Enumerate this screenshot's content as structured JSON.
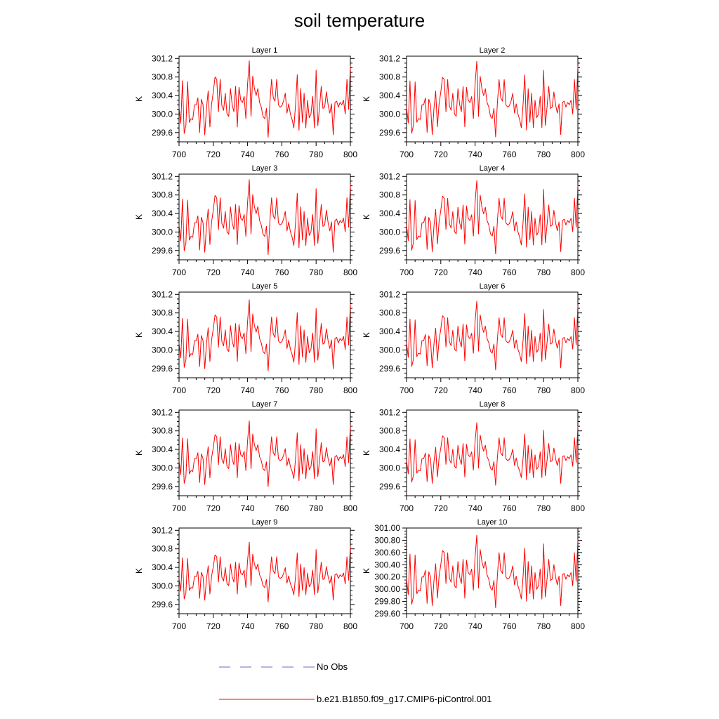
{
  "title": "soil temperature",
  "colors": {
    "series": "#ff0000",
    "obs": "#6a6ad0",
    "axis": "#000000"
  },
  "chart_data": {
    "type": "line",
    "x": [
      700,
      701,
      702,
      703,
      704,
      705,
      706,
      707,
      708,
      709,
      710,
      711,
      712,
      713,
      714,
      715,
      716,
      717,
      718,
      719,
      720,
      721,
      722,
      723,
      724,
      725,
      726,
      727,
      728,
      729,
      730,
      731,
      732,
      733,
      734,
      735,
      736,
      737,
      738,
      739,
      740,
      741,
      742,
      743,
      744,
      745,
      746,
      747,
      748,
      749,
      750,
      751,
      752,
      753,
      754,
      755,
      756,
      757,
      758,
      759,
      760,
      761,
      762,
      763,
      764,
      765,
      766,
      767,
      768,
      769,
      770,
      771,
      772,
      773,
      774,
      775,
      776,
      777,
      778,
      779,
      780,
      781,
      782,
      783,
      784,
      785,
      786,
      787,
      788,
      789,
      790,
      791,
      792,
      793,
      794,
      795,
      796,
      797,
      798,
      799,
      800
    ],
    "base": [
      300.15,
      299.8,
      300.72,
      299.58,
      299.75,
      300.7,
      299.82,
      299.9,
      299.88,
      300.2,
      300.2,
      300.35,
      299.6,
      300.32,
      300.2,
      299.55,
      300.12,
      300.5,
      299.72,
      300.22,
      300.48,
      300.8,
      300.75,
      300.05,
      300.75,
      300.18,
      300.08,
      300.45,
      300.0,
      299.95,
      300.55,
      300.2,
      300.05,
      300.6,
      299.72,
      300.58,
      300.3,
      300.25,
      300.38,
      299.9,
      300.65,
      301.15,
      299.95,
      300.82,
      300.55,
      300.4,
      300.55,
      300.25,
      300.15,
      299.95,
      299.9,
      300.12,
      299.5,
      300.22,
      300.75,
      300.35,
      300.28,
      300.75,
      300.2,
      300.15,
      300.18,
      300.28,
      300.45,
      300.02,
      300.22,
      300.0,
      299.88,
      299.7,
      300.2,
      300.85,
      299.65,
      300.55,
      299.82,
      300.45,
      299.7,
      300.3,
      299.92,
      300.0,
      300.38,
      299.7,
      300.95,
      299.75,
      300.15,
      300.6,
      300.12,
      300.15,
      300.48,
      300.2,
      300.02,
      300.22,
      299.55,
      300.25,
      300.28,
      300.15,
      300.25,
      300.2,
      300.3,
      300.0,
      300.75,
      300.1,
      301.05
    ],
    "xlim": [
      700,
      800
    ],
    "grid": false,
    "panels": [
      {
        "title": "Layer 1",
        "ylabel": "K",
        "ylim": [
          299.4,
          301.25
        ],
        "yticks": [
          299.6,
          300.0,
          300.4,
          300.8,
          301.2
        ],
        "yticklabels": [
          "299.6",
          "300.0",
          "300.4",
          "300.8",
          "301.2"
        ],
        "xticklabels": [
          "700",
          "720",
          "740",
          "760",
          "780",
          "800"
        ],
        "amp": 1.0
      },
      {
        "title": "Layer 2",
        "ylabel": "K",
        "ylim": [
          299.4,
          301.25
        ],
        "yticks": [
          299.6,
          300.0,
          300.4,
          300.8,
          301.2
        ],
        "yticklabels": [
          "299.6",
          "300.0",
          "300.4",
          "300.8",
          "301.2"
        ],
        "xticklabels": [
          "700",
          "720",
          "740",
          "760",
          "780",
          "800"
        ],
        "amp": 0.99
      },
      {
        "title": "Layer 3",
        "ylabel": "K",
        "ylim": [
          299.4,
          301.25
        ],
        "yticks": [
          299.6,
          300.0,
          300.4,
          300.8,
          301.2
        ],
        "yticklabels": [
          "299.6",
          "300.0",
          "300.4",
          "300.8",
          "301.2"
        ],
        "xticklabels": [
          "700",
          "720",
          "740",
          "760",
          "780",
          "800"
        ],
        "amp": 0.98
      },
      {
        "title": "Layer 4",
        "ylabel": "K",
        "ylim": [
          299.4,
          301.25
        ],
        "yticks": [
          299.6,
          300.0,
          300.4,
          300.8,
          301.2
        ],
        "yticklabels": [
          "299.6",
          "300.0",
          "300.4",
          "300.8",
          "301.2"
        ],
        "xticklabels": [
          "700",
          "720",
          "740",
          "760",
          "780",
          "800"
        ],
        "amp": 0.96
      },
      {
        "title": "Layer 5",
        "ylabel": "K",
        "ylim": [
          299.4,
          301.25
        ],
        "yticks": [
          299.6,
          300.0,
          300.4,
          300.8,
          301.2
        ],
        "yticklabels": [
          "299.6",
          "300.0",
          "300.4",
          "300.8",
          "301.2"
        ],
        "xticklabels": [
          "700",
          "720",
          "740",
          "760",
          "780",
          "800"
        ],
        "amp": 0.93
      },
      {
        "title": "Layer 6",
        "ylabel": "K",
        "ylim": [
          299.4,
          301.25
        ],
        "yticks": [
          299.6,
          300.0,
          300.4,
          300.8,
          301.2
        ],
        "yticklabels": [
          "299.6",
          "300.0",
          "300.4",
          "300.8",
          "301.2"
        ],
        "xticklabels": [
          "700",
          "720",
          "740",
          "760",
          "780",
          "800"
        ],
        "amp": 0.9
      },
      {
        "title": "Layer 7",
        "ylabel": "K",
        "ylim": [
          299.4,
          301.25
        ],
        "yticks": [
          299.6,
          300.0,
          300.4,
          300.8,
          301.2
        ],
        "yticklabels": [
          "299.6",
          "300.0",
          "300.4",
          "300.8",
          "301.2"
        ],
        "xticklabels": [
          "700",
          "720",
          "740",
          "760",
          "780",
          "800"
        ],
        "amp": 0.86
      },
      {
        "title": "Layer 8",
        "ylabel": "K",
        "ylim": [
          299.4,
          301.25
        ],
        "yticks": [
          299.6,
          300.0,
          300.4,
          300.8,
          301.2
        ],
        "yticklabels": [
          "299.6",
          "300.0",
          "300.4",
          "300.8",
          "301.2"
        ],
        "xticklabels": [
          "700",
          "720",
          "740",
          "760",
          "780",
          "800"
        ],
        "amp": 0.82
      },
      {
        "title": "Layer 9",
        "ylabel": "K",
        "ylim": [
          299.4,
          301.25
        ],
        "yticks": [
          299.6,
          300.0,
          300.4,
          300.8,
          301.2
        ],
        "yticklabels": [
          "299.6",
          "300.0",
          "300.4",
          "300.8",
          "301.2"
        ],
        "xticklabels": [
          "700",
          "720",
          "740",
          "760",
          "780",
          "800"
        ],
        "amp": 0.78
      },
      {
        "title": "Layer 10",
        "ylabel": "K",
        "ylim": [
          299.6,
          301.0
        ],
        "yticks": [
          299.6,
          299.8,
          300.0,
          300.2,
          300.4,
          300.6,
          300.8,
          301.0
        ],
        "yticklabels": [
          "299.60",
          "299.80",
          "300.00",
          "300.20",
          "300.40",
          "300.60",
          "300.80",
          "301.00"
        ],
        "xticklabels": [
          "700",
          "720",
          "740",
          "760",
          "780",
          "800"
        ],
        "amp": 0.72
      }
    ],
    "legend": [
      {
        "label": "No Obs",
        "style": "dashed",
        "color": "#6a6ad0"
      },
      {
        "label": "b.e21.B1850.f09_g17.CMIP6-piControl.001",
        "style": "solid",
        "color": "#ff0000"
      }
    ]
  }
}
